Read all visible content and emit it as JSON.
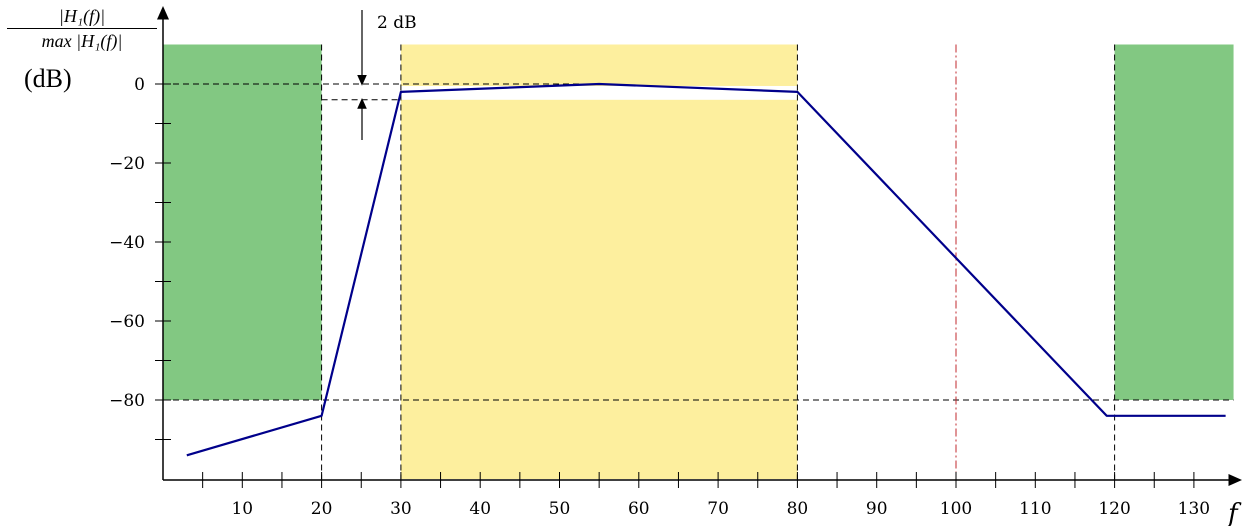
{
  "chart_data": {
    "type": "line",
    "ylabel": {
      "numerator": "|H₁(f)|",
      "denominator": "max |H₁(f)|",
      "unit": "(dB)"
    },
    "xlabel": "f",
    "annotation": "2 dB",
    "xlim": [
      -5,
      135
    ],
    "ylim": [
      -100,
      18
    ],
    "x_ticks_major": [
      10,
      20,
      30,
      40,
      50,
      60,
      70,
      80,
      90,
      100,
      110,
      120,
      130
    ],
    "x_ticks_minor": [
      5,
      15,
      25,
      35,
      45,
      55,
      65,
      75,
      85,
      95,
      105,
      115,
      125
    ],
    "y_ticks_major": [
      0,
      -20,
      -40,
      -60,
      -80
    ],
    "y_ticks_minor": [
      -10,
      -30,
      -50,
      -70,
      -90
    ],
    "series": [
      {
        "x": [
          3,
          20,
          30,
          55,
          80,
          119,
          120,
          134
        ],
        "y": [
          -94,
          -84,
          -2,
          0,
          -2,
          -84,
          -84,
          -84
        ]
      }
    ],
    "stopband_regions": [
      {
        "x": [
          0,
          20
        ],
        "y": [
          -80,
          10
        ]
      },
      {
        "x": [
          120,
          135
        ],
        "y": [
          -80,
          10
        ]
      }
    ],
    "passband_region": {
      "x": [
        30,
        80
      ],
      "y": [
        -100,
        10
      ],
      "gap_y": [
        -4,
        -0.5
      ]
    },
    "guide_lines_x": [
      20,
      30,
      80,
      120
    ],
    "guide_lines_y": [
      0,
      -4,
      -80
    ],
    "dashdot_line_x": 100,
    "colors": {
      "stopband": "#82c882",
      "passband": "#fdef9e",
      "curve": "#00008b",
      "dashdot": "#c0282e",
      "axis": "#000000"
    }
  }
}
